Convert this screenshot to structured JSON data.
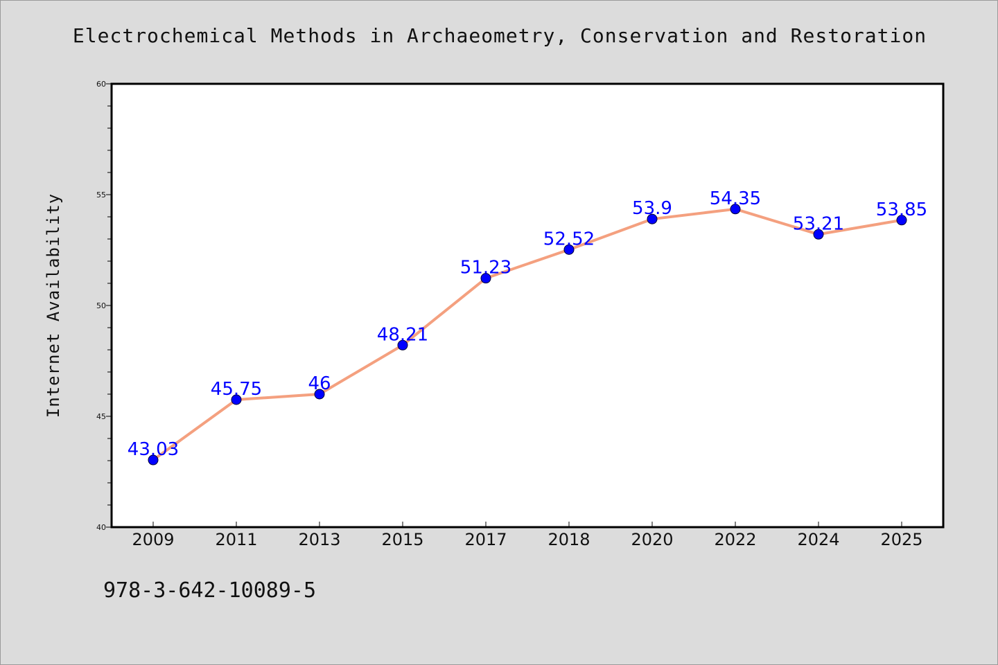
{
  "chart_data": {
    "type": "line",
    "title": "Electrochemical Methods in Archaeometry, Conservation and Restoration",
    "xlabel": "",
    "ylabel": "Internet Availability",
    "categories": [
      "2009",
      "2011",
      "2013",
      "2015",
      "2017",
      "2018",
      "2020",
      "2022",
      "2024",
      "2025"
    ],
    "series": [
      {
        "values": [
          43.03,
          45.75,
          46,
          48.21,
          51.23,
          52.52,
          53.9,
          54.35,
          53.21,
          53.85
        ],
        "labels": [
          "43.03",
          "45.75",
          "46",
          "48.21",
          "51.23",
          "52.52",
          "53.9",
          "54.35",
          "53.21",
          "53.85"
        ]
      }
    ],
    "ylim": [
      40,
      60
    ],
    "yticks": [
      "40",
      "45",
      "50",
      "55",
      "60"
    ],
    "grid": false,
    "line_color": "#f4a07f",
    "marker_color": "#0000ff",
    "label_color": "#0000ff"
  },
  "footer": {
    "code": "978-3-642-10089-5"
  }
}
